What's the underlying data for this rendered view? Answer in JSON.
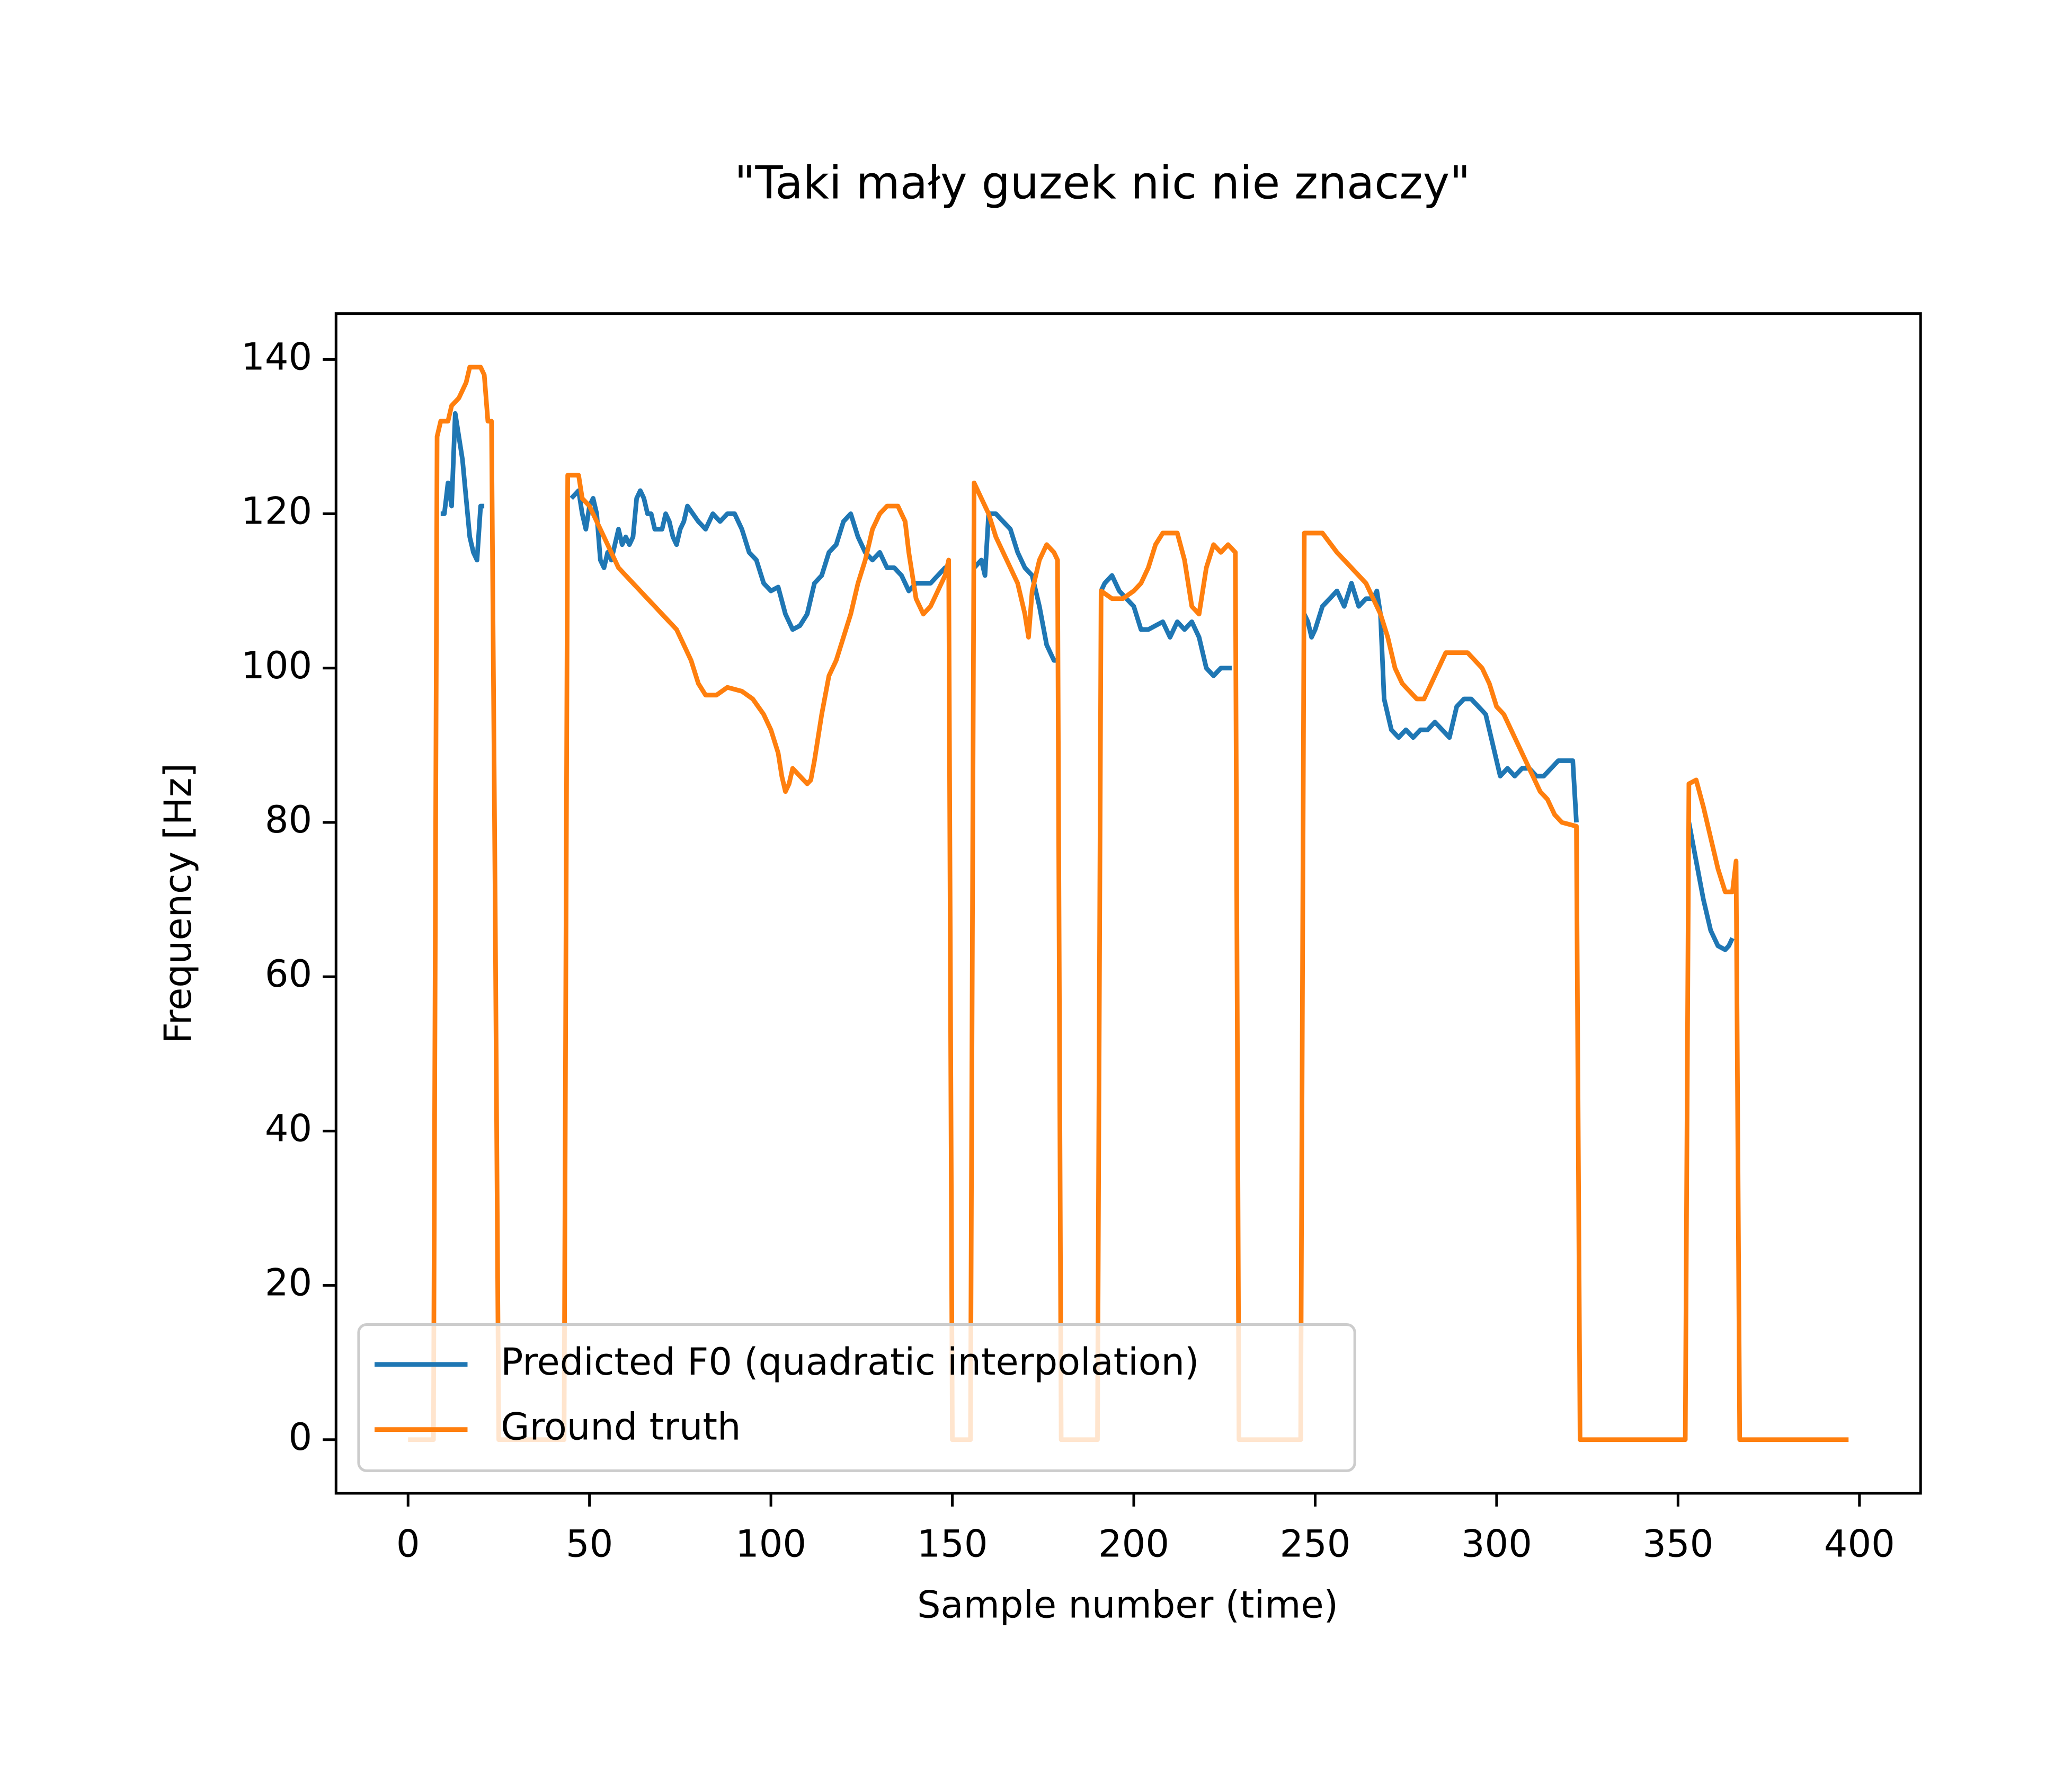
{
  "chart_data": {
    "type": "line",
    "title": "\"Taki mały guzek nic nie znaczy\"",
    "xlabel": "Sample number (time)",
    "ylabel": "Frequency [Hz]",
    "xlim": [
      -19.85,
      416.85
    ],
    "ylim": [
      -6.95,
      145.95
    ],
    "xticks": [
      0,
      50,
      100,
      150,
      200,
      250,
      300,
      350,
      400
    ],
    "yticks": [
      0,
      20,
      40,
      60,
      80,
      100,
      120,
      140
    ],
    "legend": "lower left",
    "series": [
      {
        "name": "Predicted F0 (quadratic interpolation)",
        "color": "#1f77b4",
        "x": [
          9,
          10,
          11,
          12,
          13,
          14,
          15,
          16,
          17,
          18,
          19,
          20,
          21,
          22,
          45,
          47,
          48,
          49,
          50,
          51,
          52,
          53,
          54,
          55,
          56,
          57,
          58,
          59,
          60,
          61,
          62,
          63,
          64,
          65,
          66,
          67,
          68,
          69,
          70,
          71,
          72,
          73,
          74,
          75,
          76,
          77,
          80,
          82,
          84,
          86,
          88,
          90,
          92,
          94,
          96,
          98,
          100,
          102,
          104,
          106,
          108,
          110,
          112,
          114,
          116,
          118,
          120,
          122,
          124,
          126,
          128,
          130,
          132,
          134,
          136,
          138,
          140,
          142,
          144,
          146,
          148,
          149,
          150,
          156,
          157,
          158,
          159,
          160,
          162,
          164,
          166,
          168,
          170,
          172,
          174,
          176,
          178,
          179,
          180,
          191,
          192,
          194,
          196,
          198,
          200,
          202,
          204,
          206,
          208,
          210,
          212,
          214,
          216,
          218,
          220,
          222,
          224,
          226,
          227,
          228,
          247,
          248,
          249,
          250,
          252,
          254,
          256,
          258,
          260,
          262,
          264,
          266,
          267,
          268,
          269,
          271,
          273,
          275,
          277,
          279,
          281,
          283,
          285,
          287,
          289,
          291,
          293,
          295,
          297,
          299,
          301,
          303,
          305,
          307,
          309,
          311,
          313,
          315,
          317,
          319,
          321,
          322,
          323,
          353,
          355,
          357,
          359,
          361,
          363,
          364,
          365
        ],
        "values": [
          120,
          120,
          124,
          121,
          133,
          130,
          127,
          122,
          117,
          115,
          114,
          121,
          121,
          null,
          122,
          123,
          120,
          118,
          121,
          122,
          120,
          114,
          113,
          115,
          114,
          116,
          118,
          116,
          117,
          116,
          117,
          122,
          123,
          122,
          120,
          120,
          118,
          118,
          118,
          120,
          119,
          117,
          116,
          118,
          119,
          121,
          119,
          118,
          120,
          119,
          120,
          120,
          118,
          115,
          114,
          111,
          110,
          110.5,
          107,
          105,
          105.5,
          107,
          111,
          112,
          115,
          116,
          119,
          120,
          117,
          115,
          114,
          115,
          113,
          113,
          112,
          110,
          111,
          111,
          111,
          112,
          113,
          113,
          null,
          113,
          113.5,
          114,
          112,
          120,
          120,
          119,
          118,
          115,
          113,
          112,
          108,
          103,
          101,
          101,
          null,
          110,
          111,
          112,
          110,
          109,
          108,
          105,
          105,
          105.5,
          106,
          104,
          106,
          105,
          106,
          104,
          100,
          99,
          100,
          100,
          100,
          null,
          107,
          106,
          104,
          105,
          108,
          109,
          110,
          108,
          111,
          108,
          109,
          109,
          110,
          107,
          96,
          92,
          91,
          92,
          91,
          92,
          92,
          93,
          92,
          91,
          95,
          96,
          96,
          95,
          94,
          90,
          86,
          87,
          86,
          87,
          87,
          86,
          86,
          87,
          88,
          88,
          88,
          80,
          null,
          80,
          75,
          70,
          66,
          64,
          63.5,
          64,
          65
        ]
      },
      {
        "name": "Ground truth",
        "color": "#ff7f0e",
        "x": [
          0,
          7,
          8,
          9,
          11,
          12,
          14,
          16,
          17,
          20,
          21,
          22,
          23,
          24,
          25,
          43,
          44,
          47,
          48,
          50,
          52,
          54,
          56,
          58,
          60,
          62,
          64,
          66,
          68,
          70,
          72,
          74,
          76,
          78,
          80,
          82,
          85,
          88,
          92,
          95,
          98,
          100,
          102,
          103,
          104,
          105,
          106,
          108,
          110,
          111,
          112,
          114,
          116,
          118,
          120,
          122,
          124,
          126,
          128,
          130,
          132,
          135,
          137,
          138,
          140,
          142,
          144,
          146,
          148,
          149,
          150,
          155,
          156,
          158,
          160,
          162,
          164,
          166,
          168,
          170,
          171,
          172,
          174,
          176,
          178,
          179,
          180,
          190,
          191,
          194,
          197,
          200,
          202,
          204,
          206,
          208,
          212,
          214,
          216,
          218,
          220,
          222,
          224,
          226,
          228,
          229,
          246,
          247,
          252,
          256,
          260,
          264,
          266,
          268,
          270,
          272,
          274,
          276,
          278,
          280,
          282,
          284,
          286,
          292,
          294,
          296,
          298,
          300,
          302,
          304,
          306,
          308,
          310,
          312,
          314,
          316,
          318,
          322,
          323,
          352,
          353,
          355,
          357,
          359,
          361,
          363,
          365,
          366,
          367,
          397
        ],
        "values": [
          0,
          0,
          130,
          132,
          132,
          134,
          135,
          137,
          139,
          139,
          138,
          132,
          132,
          70,
          0,
          0,
          125,
          125,
          122,
          121,
          119,
          117,
          115,
          113,
          112,
          111,
          110,
          109,
          108,
          107,
          106,
          105,
          103,
          101,
          98,
          96.5,
          96.5,
          97.5,
          97,
          96,
          94,
          92,
          89,
          86,
          84,
          85,
          87,
          86,
          85,
          85.5,
          88,
          94,
          99,
          101,
          104,
          107,
          111,
          114,
          118,
          120,
          121,
          121,
          119,
          115,
          109,
          107,
          108,
          110,
          112,
          114,
          0,
          0,
          124,
          122,
          120,
          117,
          115,
          113,
          111,
          107,
          104,
          110,
          114,
          116,
          115,
          114,
          0,
          0,
          110,
          109,
          109,
          110,
          111,
          113,
          116,
          117.5,
          117.5,
          114,
          108,
          107,
          113,
          116,
          115,
          116,
          115,
          0,
          0,
          117.5,
          117.5,
          115,
          113,
          111,
          109,
          107,
          104,
          100,
          98,
          97,
          96,
          96,
          98,
          100,
          102,
          102,
          101,
          100,
          98,
          95,
          94,
          92,
          90,
          88,
          86,
          84,
          83,
          81,
          80,
          79.5,
          0,
          0,
          85,
          85.5,
          82,
          78,
          74,
          71,
          71,
          75,
          0,
          0
        ]
      }
    ]
  }
}
